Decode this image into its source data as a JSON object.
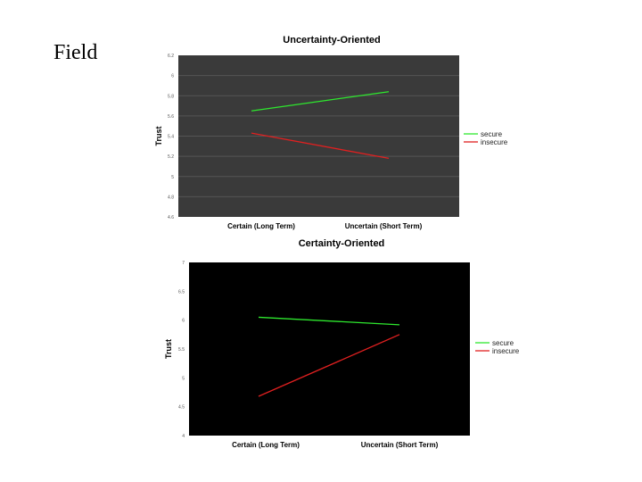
{
  "slide": {
    "title": "Field"
  },
  "chart_data": [
    {
      "type": "line",
      "title": "Uncertainty-Oriented",
      "xlabel": "",
      "ylabel": "Trust",
      "categories": [
        "Certain (Long Term)",
        "Uncertain (Short Term)"
      ],
      "yticks": [
        "4.6",
        "4.8",
        "5",
        "5.2",
        "5.4",
        "5.6",
        "5.8",
        "6",
        "6.2"
      ],
      "ylim": [
        4.6,
        6.2
      ],
      "grid": true,
      "legend_position": "right",
      "series": [
        {
          "name": "secure",
          "values": [
            5.65,
            5.84
          ],
          "color": "#2ee82e"
        },
        {
          "name": "insecure",
          "values": [
            5.43,
            5.18
          ],
          "color": "#e02020"
        }
      ]
    },
    {
      "type": "line",
      "title": "Certainty-Oriented",
      "xlabel": "",
      "ylabel": "Trust",
      "categories": [
        "Certain (Long Term)",
        "Uncertain (Short Term)"
      ],
      "yticks": [
        "4",
        "4.5",
        "5",
        "5.5",
        "6",
        "6.5",
        "7"
      ],
      "ylim": [
        4,
        7
      ],
      "grid": false,
      "legend_position": "right",
      "series": [
        {
          "name": "secure",
          "values": [
            6.05,
            5.92
          ],
          "color": "#2ee82e"
        },
        {
          "name": "insecure",
          "values": [
            4.68,
            5.75
          ],
          "color": "#e02020"
        }
      ]
    }
  ]
}
